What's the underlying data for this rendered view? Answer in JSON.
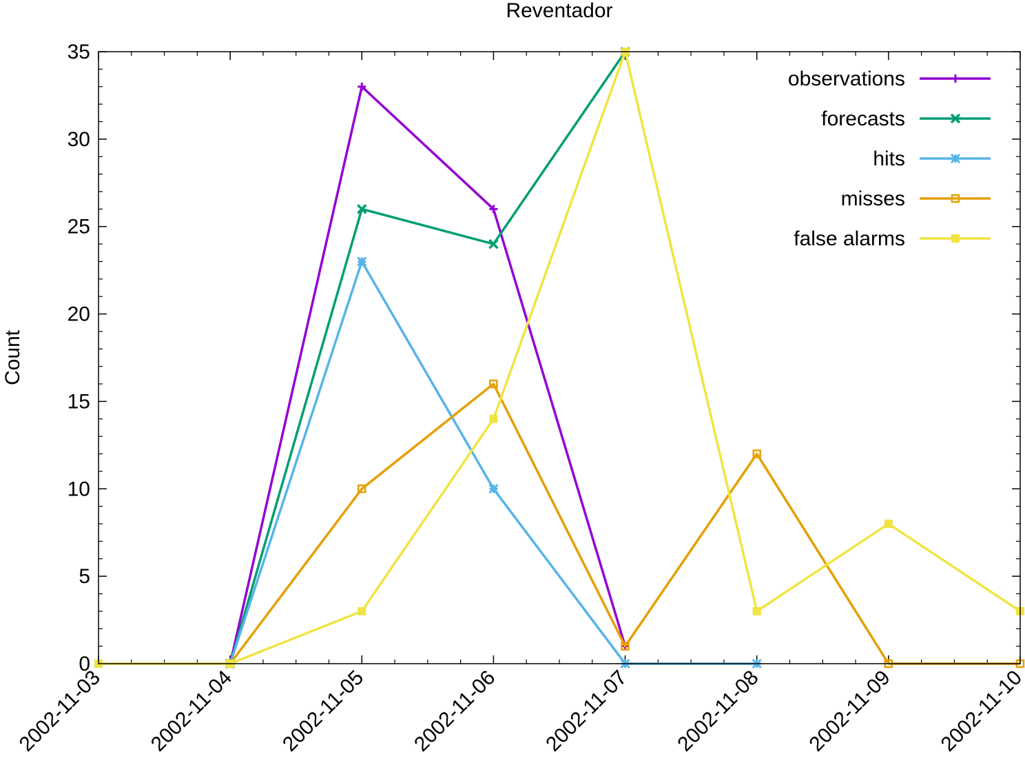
{
  "chart_data": {
    "type": "line",
    "title": "Reventador",
    "xlabel": "",
    "ylabel": "Count",
    "x": [
      "2002-11-03",
      "2002-11-04",
      "2002-11-05",
      "2002-11-06",
      "2002-11-07",
      "2002-11-08",
      "2002-11-09",
      "2002-11-10"
    ],
    "ylim": [
      0,
      35
    ],
    "yticks": [
      0,
      5,
      10,
      15,
      20,
      25,
      30,
      35
    ],
    "grid": false,
    "legend_position": "top-right",
    "series": [
      {
        "name": "observations",
        "color": "#9400d3",
        "marker": "plus",
        "x": [
          "2002-11-04",
          "2002-11-05",
          "2002-11-06",
          "2002-11-07"
        ],
        "values": [
          0,
          33,
          26,
          1
        ]
      },
      {
        "name": "forecasts",
        "color": "#009e73",
        "marker": "cross",
        "x": [
          "2002-11-04",
          "2002-11-05",
          "2002-11-06",
          "2002-11-07"
        ],
        "values": [
          0,
          26,
          24,
          35
        ]
      },
      {
        "name": "hits",
        "color": "#56b4e9",
        "marker": "star",
        "x": [
          "2002-11-04",
          "2002-11-05",
          "2002-11-06",
          "2002-11-07",
          "2002-11-08"
        ],
        "values": [
          0,
          23,
          10,
          0,
          0
        ]
      },
      {
        "name": "misses",
        "color": "#e69f00",
        "marker": "open-square",
        "x": [
          "2002-11-04",
          "2002-11-05",
          "2002-11-06",
          "2002-11-07",
          "2002-11-08",
          "2002-11-09",
          "2002-11-10"
        ],
        "values": [
          0,
          10,
          16,
          1,
          12,
          0,
          0
        ]
      },
      {
        "name": "false alarms",
        "color": "#f0e442",
        "marker": "filled-square",
        "x": [
          "2002-11-03",
          "2002-11-04",
          "2002-11-05",
          "2002-11-06",
          "2002-11-07",
          "2002-11-08",
          "2002-11-09",
          "2002-11-10"
        ],
        "values": [
          0,
          0,
          3,
          14,
          35,
          3,
          8,
          3
        ]
      }
    ]
  }
}
